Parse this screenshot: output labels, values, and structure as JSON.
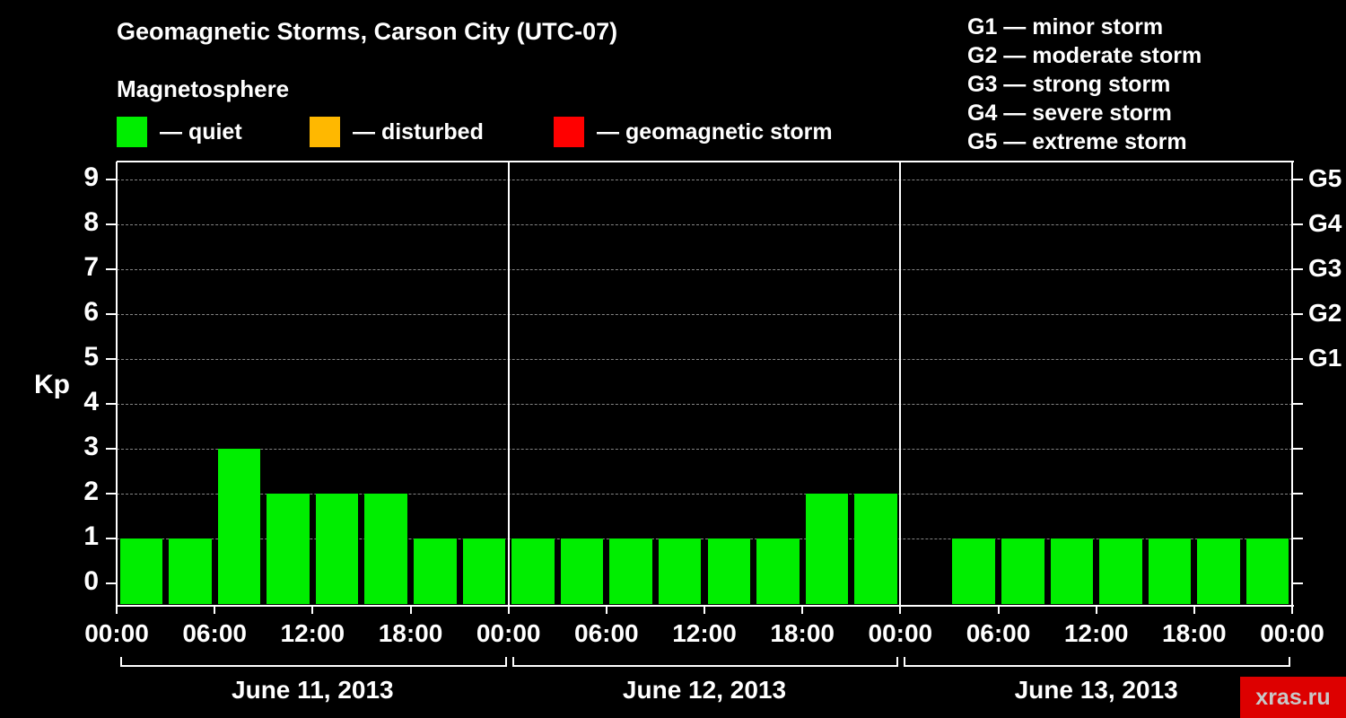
{
  "header": {
    "title": "Geomagnetic Storms, Carson City (UTC-07)",
    "subtitle": "Magnetosphere"
  },
  "legend": {
    "items": [
      {
        "label": "— quiet",
        "color": "#00ee00"
      },
      {
        "label": "— disturbed",
        "color": "#ffb800"
      },
      {
        "label": "— geomagnetic storm",
        "color": "#ff0000"
      }
    ]
  },
  "g_scale": {
    "items": [
      "G1 — minor storm",
      "G2 — moderate storm",
      "G3 — strong storm",
      "G4 — severe storm",
      "G5 — extreme storm"
    ]
  },
  "chart_data": {
    "type": "bar",
    "title": "Geomagnetic Storms, Carson City (UTC-07)",
    "subtitle": "Magnetosphere",
    "ylabel": "Kp",
    "ylim": [
      0,
      9.5
    ],
    "yticks": [
      0,
      1,
      2,
      3,
      4,
      5,
      6,
      7,
      8,
      9
    ],
    "grid": "dashed horizontal lines at each Kp integer 1-9",
    "bar_color": "#00ee00",
    "interval_hours": 3,
    "right_axis_labels": [
      {
        "value": 5,
        "label": "G1"
      },
      {
        "value": 6,
        "label": "G2"
      },
      {
        "value": 7,
        "label": "G3"
      },
      {
        "value": 8,
        "label": "G4"
      },
      {
        "value": 9,
        "label": "G5"
      }
    ],
    "days": [
      {
        "date": "June 11, 2013",
        "values": [
          1,
          1,
          3,
          2,
          2,
          2,
          1,
          1
        ]
      },
      {
        "date": "June 12, 2013",
        "values": [
          1,
          1,
          1,
          1,
          1,
          1,
          2,
          2
        ]
      },
      {
        "date": "June 13, 2013",
        "values": [
          null,
          1,
          1,
          1,
          1,
          1,
          1,
          1
        ]
      }
    ],
    "time_ticks": [
      "00:00",
      "06:00",
      "12:00",
      "18:00"
    ],
    "end_tick": "00:00"
  },
  "watermark": {
    "text": "xras.ru"
  }
}
